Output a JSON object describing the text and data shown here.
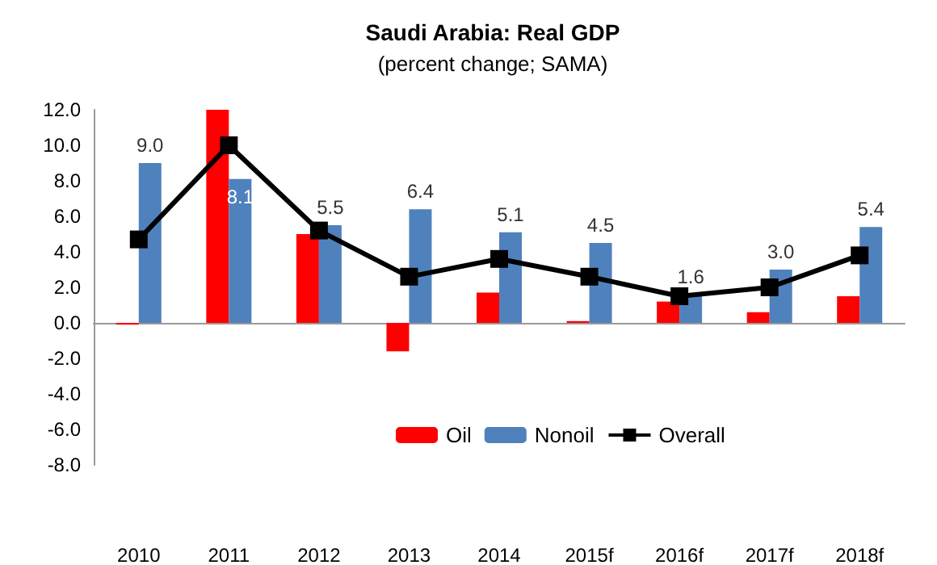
{
  "chart_data": {
    "type": "bar",
    "title": "Saudi Arabia: Real GDP",
    "subtitle": "(percent change; SAMA)",
    "categories": [
      "2010",
      "2011",
      "2012",
      "2013",
      "2014",
      "2015f",
      "2016f",
      "2017f",
      "2018f"
    ],
    "series": [
      {
        "name": "Oil",
        "color": "#ff0000",
        "values": [
          -0.1,
          12.0,
          5.0,
          -1.6,
          1.7,
          0.1,
          1.2,
          0.6,
          1.5
        ]
      },
      {
        "name": "Nonoil",
        "color": "#4f81bd",
        "values": [
          9.0,
          8.1,
          5.5,
          6.4,
          5.1,
          4.5,
          1.6,
          3.0,
          5.4
        ],
        "value_labels": [
          "9.0",
          "8.1",
          "5.5",
          "6.4",
          "5.1",
          "4.5",
          "1.6",
          "3.0",
          "5.4"
        ]
      },
      {
        "name": "Overall",
        "type": "line",
        "color": "#000000",
        "marker": "square",
        "values": [
          4.7,
          10.0,
          5.2,
          2.6,
          3.6,
          2.6,
          1.5,
          2.0,
          3.8
        ]
      }
    ],
    "ylim": [
      -8,
      12
    ],
    "yticks": [
      {
        "value": -8,
        "label": "-8.0"
      },
      {
        "value": -6,
        "label": "-6.0"
      },
      {
        "value": -4,
        "label": "-4.0"
      },
      {
        "value": -2,
        "label": "-2.0"
      },
      {
        "value": 0,
        "label": "0.0"
      },
      {
        "value": 2,
        "label": "2.0"
      },
      {
        "value": 4,
        "label": "4.0"
      },
      {
        "value": 6,
        "label": "6.0"
      },
      {
        "value": 8,
        "label": "8.0"
      },
      {
        "value": 10,
        "label": "10.0"
      },
      {
        "value": 12,
        "label": "12.0"
      }
    ],
    "legend": "bottom"
  }
}
